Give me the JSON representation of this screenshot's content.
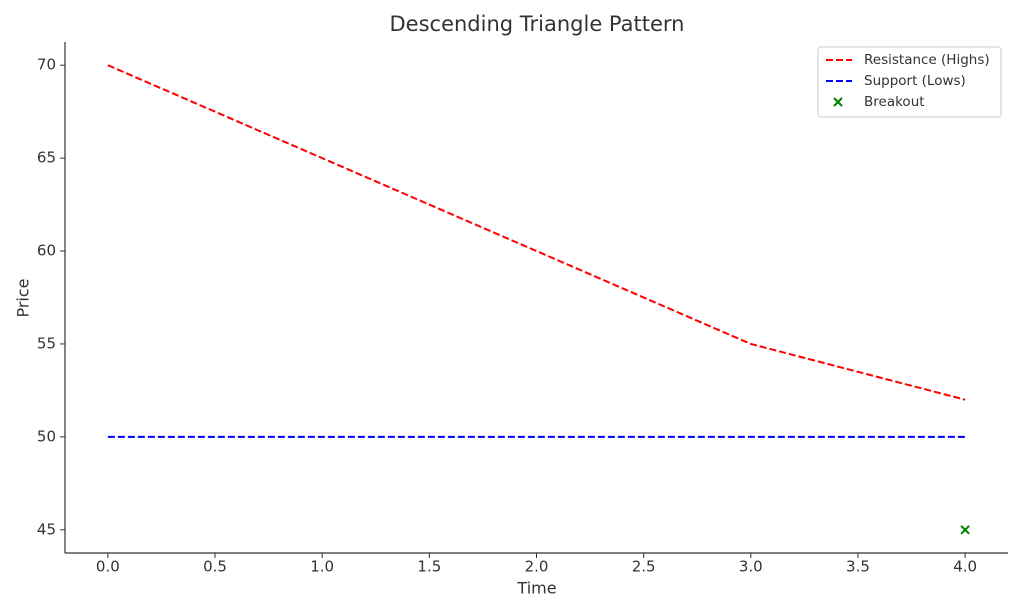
{
  "chart_data": {
    "type": "line",
    "title": "Descending Triangle Pattern",
    "xlabel": "Time",
    "ylabel": "Price",
    "x": [
      0,
      1,
      2,
      3,
      4
    ],
    "series": [
      {
        "name": "Resistance (Highs)",
        "color": "#ff0000",
        "linestyle": "dashed",
        "values": [
          70,
          65,
          60,
          55,
          52
        ]
      },
      {
        "name": "Support (Lows)",
        "color": "#0000ff",
        "linestyle": "dashed",
        "values": [
          50,
          50,
          50,
          50,
          50
        ]
      },
      {
        "name": "Breakout",
        "color": "#008000",
        "marker": "x",
        "values": [
          null,
          null,
          null,
          null,
          45
        ]
      }
    ],
    "xlim": [
      -0.2,
      4.2
    ],
    "xticks": [
      {
        "value": 0,
        "label": "0.0"
      },
      0.5,
      {
        "value": 1,
        "label": "1.0"
      },
      1.5,
      {
        "value": 2,
        "label": "2.0"
      },
      2.5,
      {
        "value": 3,
        "label": "3.0"
      },
      3.5,
      {
        "value": 4,
        "label": "4.0"
      }
    ],
    "ylim": [
      43.75,
      71.25
    ],
    "yticks": [
      45,
      50,
      55,
      60,
      65,
      70
    ],
    "grid": false,
    "legend": "upper right"
  }
}
